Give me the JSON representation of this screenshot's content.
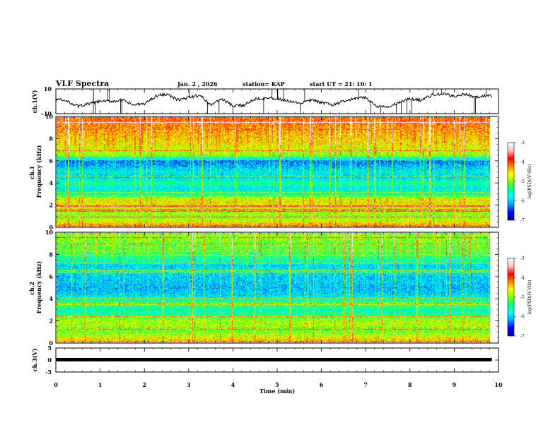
{
  "header": {
    "title": "VLF Spectra",
    "date": "Jan. 2 , 2026",
    "station": "station= KAP",
    "start": "start  UT =   21: 10: 1"
  },
  "chart_data": [
    {
      "type": "line",
      "panel": "ch1-waveform",
      "ylabel": "ch.1(V)",
      "ylim": [
        -10,
        10
      ],
      "yticks": [
        "10",
        "-10"
      ],
      "xlim": [
        0,
        10
      ],
      "series": [
        {
          "x": [
            0,
            0.25,
            0.5,
            0.75,
            1.0,
            1.25,
            1.5,
            1.75,
            2.0,
            2.25,
            2.5,
            2.75,
            3.0,
            3.25,
            3.5,
            3.75,
            4.0,
            4.25,
            4.5,
            4.75,
            5.0,
            5.25,
            5.5,
            5.75,
            6.0,
            6.25,
            6.5,
            6.75,
            7.0,
            7.25,
            7.5,
            7.75,
            8.0,
            8.25,
            8.5,
            8.75,
            9.0,
            9.25,
            9.5,
            9.75,
            9.85
          ],
          "y": [
            2,
            0,
            -4,
            -2,
            0,
            0,
            1,
            -3,
            -2,
            4,
            6,
            1,
            3,
            5,
            -3,
            2,
            -4,
            -3,
            2,
            3,
            2,
            0,
            -2,
            1,
            -1,
            -3,
            0,
            2,
            3,
            -4,
            -5,
            -1,
            2,
            1,
            5,
            6,
            4,
            6,
            3,
            5,
            4
          ]
        }
      ]
    },
    {
      "type": "heatmap",
      "panel": "ch1-spectrogram",
      "ylabel": "ch.1\nFrequency (kHz)",
      "ylim": [
        0,
        10
      ],
      "yticks": [
        "0",
        "2",
        "4",
        "6",
        "8",
        "10"
      ],
      "xlim": [
        0,
        9.85
      ],
      "profile_khz": [
        0,
        0.5,
        1,
        1.5,
        2,
        2.5,
        3,
        3.5,
        4,
        4.5,
        5,
        5.5,
        6,
        6.5,
        7,
        7.5,
        8,
        8.5,
        9,
        9.5,
        10
      ],
      "profile_logpsd": [
        -4.2,
        -4.8,
        -5.0,
        -4.8,
        -4.6,
        -4.7,
        -5.7,
        -5.8,
        -5.5,
        -6.0,
        -5.8,
        -6.1,
        -6.3,
        -5.0,
        -4.8,
        -4.6,
        -4.5,
        -4.4,
        -4.3,
        -4.2,
        -4.1
      ],
      "colorbar": {
        "label": "log(PSD)(V²/Hz)",
        "min": -7,
        "max": -3,
        "ticks": [
          "-3",
          "-4",
          "-5",
          "-6",
          "-7"
        ]
      }
    },
    {
      "type": "heatmap",
      "panel": "ch2-spectrogram",
      "ylabel": "ch.2\nFrequency (kHz)",
      "ylim": [
        0,
        10
      ],
      "yticks": [
        "0",
        "2",
        "4",
        "6",
        "8",
        "10"
      ],
      "xlim": [
        0,
        9.85
      ],
      "profile_khz": [
        0,
        0.5,
        1,
        1.5,
        2,
        2.5,
        3,
        3.5,
        4,
        4.5,
        5,
        5.5,
        6,
        6.5,
        7,
        7.5,
        8,
        8.5,
        9,
        9.5,
        10
      ],
      "profile_logpsd": [
        -4.3,
        -4.8,
        -5.1,
        -4.9,
        -4.9,
        -5.5,
        -5.6,
        -5.2,
        -5.8,
        -6.0,
        -6.1,
        -6.0,
        -6.0,
        -5.8,
        -6.0,
        -5.6,
        -5.3,
        -5.2,
        -5.1,
        -5.0,
        -5.0
      ],
      "colorbar": {
        "label": "log(PSD)(V²/Hz)",
        "min": -7,
        "max": -3,
        "ticks": [
          "-3",
          "-4",
          "-5",
          "-6",
          "-7"
        ]
      }
    },
    {
      "type": "line",
      "panel": "ch3-waveform",
      "ylabel": "ch.3(V)",
      "ylim": [
        -5,
        5
      ],
      "yticks": [
        "5",
        "0",
        "-5"
      ],
      "xlim": [
        0,
        10
      ],
      "series": [
        {
          "x": [
            0,
            9.85
          ],
          "y": [
            0,
            0
          ]
        }
      ]
    }
  ],
  "xaxis": {
    "label": "Time (min)",
    "ticks": [
      "0",
      "1",
      "2",
      "3",
      "4",
      "5",
      "6",
      "7",
      "8",
      "9",
      "10"
    ],
    "range": [
      0,
      10
    ]
  },
  "colors": {
    "colormap": [
      "#0000a0",
      "#0000ff",
      "#00a0ff",
      "#00ffff",
      "#00ff80",
      "#80ff00",
      "#ffff00",
      "#ff8000",
      "#ff0000",
      "#ffc0c0",
      "#ffffff"
    ]
  }
}
